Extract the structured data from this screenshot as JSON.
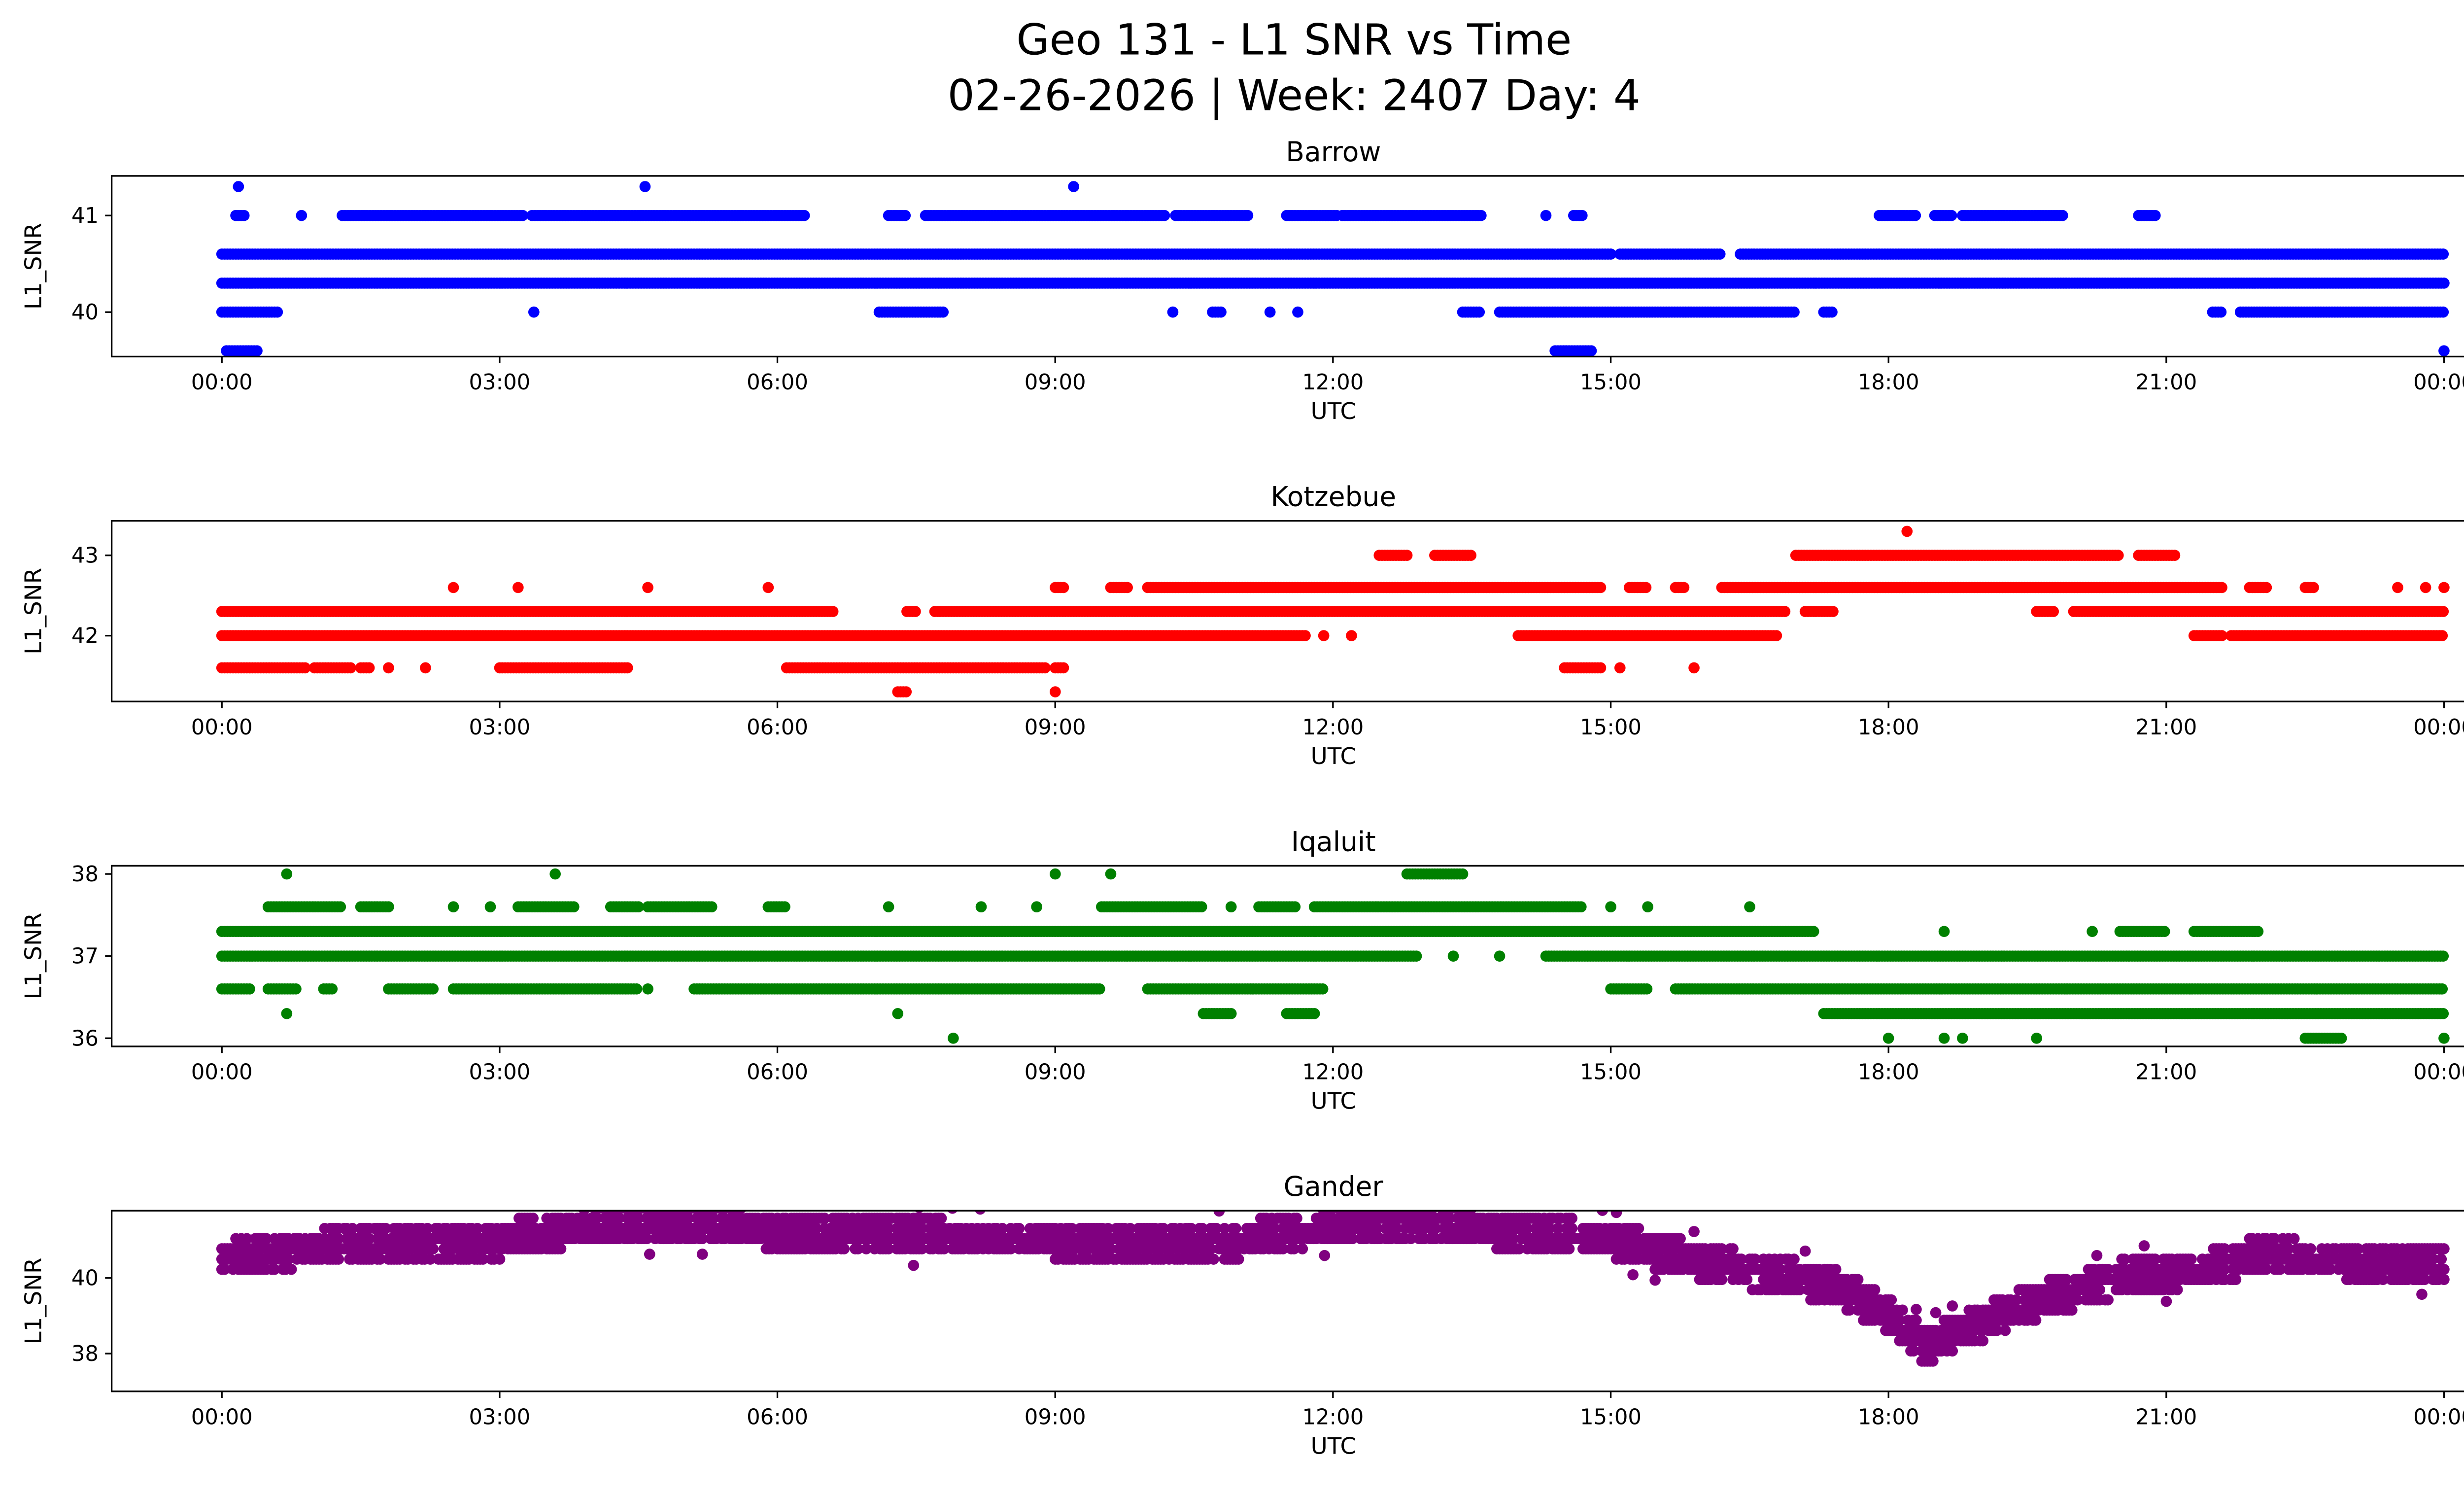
{
  "chart_data": {
    "type": "scatter",
    "title_line1": "Geo 131 - L1 SNR vs Time",
    "title_line2": "02-26-2026 | Week: 2407 Day: 4",
    "xlabel": "UTC",
    "ylabel": "L1_SNR",
    "x_unit": "hours UTC",
    "xlim": [
      -1.19,
      25.2
    ],
    "xticks": [
      0,
      3,
      6,
      9,
      12,
      15,
      18,
      21,
      24
    ],
    "xtick_labels": [
      "00:00",
      "03:00",
      "06:00",
      "09:00",
      "12:00",
      "15:00",
      "18:00",
      "21:00",
      "00:00"
    ],
    "grid": false,
    "panels": [
      {
        "title": "Barrow",
        "color": "#0000ff",
        "ylim": [
          39.54,
          41.41
        ],
        "yticks": [
          40,
          41
        ],
        "ytick_labels": [
          "40",
          "41"
        ],
        "bands": [
          {
            "snr": 41.3,
            "ranges": [
              [
                0.18,
                0.18
              ],
              [
                4.57,
                4.57
              ],
              [
                9.2,
                9.2
              ]
            ]
          },
          {
            "snr": 41.0,
            "ranges": [
              [
                0.15,
                0.25
              ],
              [
                0.86,
                0.86
              ],
              [
                1.3,
                3.25
              ],
              [
                3.35,
                6.3
              ],
              [
                7.2,
                7.4
              ],
              [
                7.6,
                10.2
              ],
              [
                10.3,
                11.1
              ],
              [
                11.5,
                12.05
              ],
              [
                12.1,
                13.6
              ],
              [
                14.3,
                14.3
              ],
              [
                14.6,
                14.7
              ],
              [
                17.9,
                18.3
              ],
              [
                18.5,
                18.7
              ],
              [
                18.8,
                19.9
              ],
              [
                20.7,
                20.9
              ]
            ]
          },
          {
            "snr": 40.6,
            "ranges": [
              [
                0,
                15.0
              ],
              [
                15.1,
                16.2
              ],
              [
                16.4,
                24
              ]
            ]
          },
          {
            "snr": 40.3,
            "ranges": [
              [
                0,
                24
              ]
            ]
          },
          {
            "snr": 40.0,
            "ranges": [
              [
                0,
                0.6
              ],
              [
                3.37,
                3.37
              ],
              [
                7.1,
                7.8
              ],
              [
                10.27,
                10.27
              ],
              [
                10.7,
                10.8
              ],
              [
                11.32,
                11.32
              ],
              [
                11.62,
                11.62
              ],
              [
                13.4,
                13.6
              ],
              [
                13.8,
                17.0
              ],
              [
                17.3,
                17.4
              ],
              [
                21.5,
                21.6
              ],
              [
                21.8,
                24
              ]
            ]
          },
          {
            "snr": 39.6,
            "ranges": [
              [
                0.05,
                0.4
              ],
              [
                14.4,
                14.8
              ],
              [
                24,
                24
              ]
            ]
          }
        ]
      },
      {
        "title": "Kotzebue",
        "color": "#ff0000",
        "ylim": [
          41.18,
          43.43
        ],
        "yticks": [
          42,
          43
        ],
        "ytick_labels": [
          "42",
          "43"
        ],
        "bands": [
          {
            "snr": 43.3,
            "ranges": [
              [
                18.2,
                18.2
              ]
            ]
          },
          {
            "snr": 43.0,
            "ranges": [
              [
                12.5,
                12.8
              ],
              [
                13.1,
                13.5
              ],
              [
                17.0,
                20.5
              ],
              [
                20.7,
                21.1
              ]
            ]
          },
          {
            "snr": 42.6,
            "ranges": [
              [
                2.5,
                2.5
              ],
              [
                3.2,
                3.2
              ],
              [
                4.6,
                4.6
              ],
              [
                5.9,
                5.9
              ],
              [
                9.0,
                9.1
              ],
              [
                9.6,
                9.8
              ],
              [
                10.0,
                14.9
              ],
              [
                15.2,
                15.4
              ],
              [
                15.7,
                15.8
              ],
              [
                16.2,
                21.6
              ],
              [
                21.9,
                22.1
              ],
              [
                22.5,
                22.6
              ],
              [
                23.5,
                23.5
              ],
              [
                23.8,
                23.8
              ],
              [
                24,
                24
              ]
            ]
          },
          {
            "snr": 42.3,
            "ranges": [
              [
                0,
                6.6
              ],
              [
                7.4,
                7.5
              ],
              [
                7.7,
                16.9
              ],
              [
                17.1,
                17.4
              ],
              [
                19.6,
                19.8
              ],
              [
                20.0,
                24
              ]
            ]
          },
          {
            "snr": 42.0,
            "ranges": [
              [
                0,
                11.7
              ],
              [
                11.9,
                11.9
              ],
              [
                12.2,
                12.2
              ],
              [
                14.0,
                16.8
              ],
              [
                21.3,
                21.6
              ],
              [
                21.7,
                24
              ]
            ]
          },
          {
            "snr": 41.6,
            "ranges": [
              [
                0,
                0.9
              ],
              [
                1.0,
                1.4
              ],
              [
                1.5,
                1.6
              ],
              [
                1.8,
                1.8
              ],
              [
                2.2,
                2.2
              ],
              [
                3.0,
                4.4
              ],
              [
                6.1,
                8.9
              ],
              [
                9.0,
                9.1
              ],
              [
                14.5,
                14.9
              ],
              [
                15.1,
                15.1
              ],
              [
                15.9,
                15.9
              ]
            ]
          },
          {
            "snr": 41.3,
            "ranges": [
              [
                7.3,
                7.4
              ],
              [
                9.0,
                9.0
              ]
            ]
          }
        ]
      },
      {
        "title": "Iqaluit",
        "color": "#008000",
        "ylim": [
          35.9,
          38.1
        ],
        "yticks": [
          36,
          37,
          38
        ],
        "ytick_labels": [
          "36",
          "37",
          "38"
        ],
        "bands": [
          {
            "snr": 38.0,
            "ranges": [
              [
                0.7,
                0.7
              ],
              [
                3.6,
                3.6
              ],
              [
                9.0,
                9.0
              ],
              [
                9.6,
                9.6
              ],
              [
                12.8,
                13.4
              ]
            ]
          },
          {
            "snr": 37.6,
            "ranges": [
              [
                0.5,
                1.3
              ],
              [
                1.5,
                1.8
              ],
              [
                2.5,
                2.5
              ],
              [
                2.9,
                2.9
              ],
              [
                3.2,
                3.8
              ],
              [
                4.2,
                4.5
              ],
              [
                4.6,
                5.3
              ],
              [
                5.9,
                6.1
              ],
              [
                7.2,
                7.2
              ],
              [
                8.2,
                8.2
              ],
              [
                8.8,
                8.8
              ],
              [
                9.5,
                10.6
              ],
              [
                10.9,
                10.9
              ],
              [
                11.2,
                11.6
              ],
              [
                11.8,
                14.7
              ],
              [
                15.0,
                15.0
              ],
              [
                15.4,
                15.4
              ],
              [
                16.5,
                16.5
              ]
            ]
          },
          {
            "snr": 37.3,
            "ranges": [
              [
                0,
                17.2
              ],
              [
                18.6,
                18.6
              ],
              [
                20.2,
                20.2
              ],
              [
                20.5,
                21.0
              ],
              [
                21.3,
                22.0
              ]
            ]
          },
          {
            "snr": 37.0,
            "ranges": [
              [
                0,
                12.9
              ],
              [
                13.3,
                13.3
              ],
              [
                13.8,
                13.8
              ],
              [
                14.3,
                24
              ]
            ]
          },
          {
            "snr": 36.6,
            "ranges": [
              [
                0,
                0.3
              ],
              [
                0.5,
                0.8
              ],
              [
                1.1,
                1.2
              ],
              [
                1.8,
                2.3
              ],
              [
                2.5,
                4.5
              ],
              [
                4.6,
                4.6
              ],
              [
                5.1,
                9.5
              ],
              [
                10.0,
                11.9
              ],
              [
                15.0,
                15.4
              ],
              [
                15.7,
                24
              ]
            ]
          },
          {
            "snr": 36.3,
            "ranges": [
              [
                0.7,
                0.7
              ],
              [
                7.3,
                7.3
              ],
              [
                10.6,
                10.9
              ],
              [
                11.5,
                11.8
              ],
              [
                17.3,
                24
              ]
            ]
          },
          {
            "snr": 36.0,
            "ranges": [
              [
                7.9,
                7.9
              ],
              [
                18.0,
                18.0
              ],
              [
                18.6,
                18.6
              ],
              [
                18.8,
                18.8
              ],
              [
                19.6,
                19.6
              ],
              [
                22.5,
                22.9
              ],
              [
                24,
                24
              ]
            ]
          }
        ]
      },
      {
        "title": "Gander",
        "color": "#800080",
        "ylim": [
          37.0,
          41.78
        ],
        "yticks": [
          38,
          40
        ],
        "ytick_labels": [
          "38",
          "40"
        ],
        "trend": [
          [
            0,
            40.5
          ],
          [
            1,
            40.8
          ],
          [
            3,
            41.0
          ],
          [
            4,
            41.4
          ],
          [
            5.5,
            41.4
          ],
          [
            6,
            41.2
          ],
          [
            9,
            41.0
          ],
          [
            11,
            41.0
          ],
          [
            12,
            41.4
          ],
          [
            13,
            41.5
          ],
          [
            14,
            41.2
          ],
          [
            15,
            41.0
          ],
          [
            16,
            40.4
          ],
          [
            17,
            40.0
          ],
          [
            17.5,
            39.7
          ],
          [
            18,
            39.0
          ],
          [
            18.4,
            38.2
          ],
          [
            19,
            38.8
          ],
          [
            19.5,
            39.3
          ],
          [
            20.5,
            40.0
          ],
          [
            21.5,
            40.3
          ],
          [
            22,
            40.6
          ],
          [
            24,
            40.3
          ]
        ],
        "spread": 0.5,
        "quantum": 0.27
      }
    ]
  }
}
